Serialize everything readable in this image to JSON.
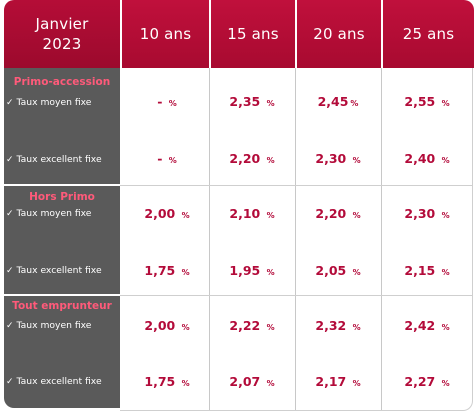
{
  "header": {
    "corner_line1": "Janvier",
    "corner_line2": "2023",
    "columns": [
      "10 ans",
      "15 ans",
      "20 ans",
      "25 ans"
    ]
  },
  "groups": [
    {
      "title": "Primo-accession",
      "rows": [
        {
          "label": "Taux moyen fixe",
          "values": [
            "- ",
            "2,35 ",
            "2,45",
            "2,55 "
          ]
        },
        {
          "label": "Taux excellent fixe",
          "values": [
            "- ",
            "2,20 ",
            "2,30 ",
            "2,40 "
          ]
        }
      ]
    },
    {
      "title": "Hors Primo",
      "rows": [
        {
          "label": "Taux moyen fixe",
          "values": [
            "2,00 ",
            "2,10 ",
            "2,20 ",
            "2,30 "
          ]
        },
        {
          "label": "Taux excellent fixe",
          "values": [
            "1,75 ",
            "1,95 ",
            "2,05 ",
            "2,15 "
          ]
        }
      ]
    },
    {
      "title": "Tout emprunteur",
      "rows": [
        {
          "label": "Taux moyen fixe",
          "values": [
            "2,00 ",
            "2,22 ",
            "2,32 ",
            "2,42 "
          ]
        },
        {
          "label": "Taux excellent fixe",
          "values": [
            "1,75 ",
            "2,07 ",
            "2,17 ",
            "2,27 "
          ]
        }
      ]
    }
  ],
  "check_glyph": "✓",
  "percent": "%",
  "colors": {
    "accent": "#b30b3a",
    "header": "#b50d37",
    "side": "#5a5a5a",
    "group_title": "#ff5a7a"
  }
}
